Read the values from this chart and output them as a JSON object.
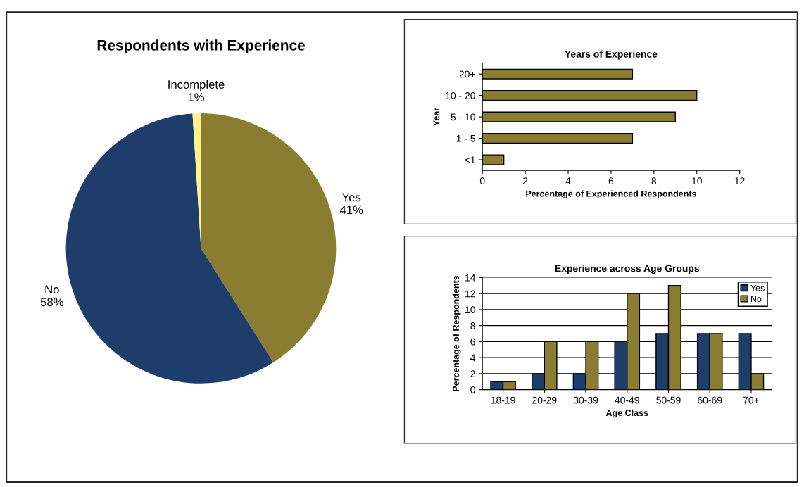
{
  "chart_data": [
    {
      "type": "pie",
      "title": "Respondents with Experience",
      "categories": [
        "Yes",
        "No",
        "Incomplete"
      ],
      "values": [
        41,
        58,
        1
      ],
      "colors": [
        "#8a7d32",
        "#1f3d6b",
        "#fdf28c"
      ],
      "value_labels": [
        "41%",
        "58%",
        "1%"
      ]
    },
    {
      "type": "bar",
      "orientation": "horizontal",
      "title": "Years of Experience",
      "xlabel": "Percentage of Experienced Respondents",
      "ylabel": "Year",
      "categories": [
        "20+",
        "10 - 20",
        "5 - 10",
        "1 - 5",
        "<1"
      ],
      "values": [
        7,
        10,
        9,
        7,
        1
      ],
      "color": "#8a7d32",
      "xlim": [
        0,
        12
      ],
      "xticks": [
        0,
        2,
        4,
        6,
        8,
        10,
        12
      ]
    },
    {
      "type": "bar",
      "title": "Experience across Age Groups",
      "xlabel": "Age Class",
      "ylabel": "Percentage of Respondents",
      "categories": [
        "18-19",
        "20-29",
        "30-39",
        "40-49",
        "50-59",
        "60-69",
        "70+"
      ],
      "series": [
        {
          "name": "Yes",
          "color": "#1f3d6b",
          "values": [
            1,
            2,
            2,
            6,
            7,
            7,
            7
          ]
        },
        {
          "name": "No",
          "color": "#8a7d32",
          "values": [
            1,
            6,
            6,
            12,
            13,
            7,
            2
          ]
        }
      ],
      "ylim": [
        0,
        14
      ],
      "yticks": [
        0,
        2,
        4,
        6,
        8,
        10,
        12,
        14
      ],
      "grid": "y",
      "legend": "top right"
    }
  ]
}
